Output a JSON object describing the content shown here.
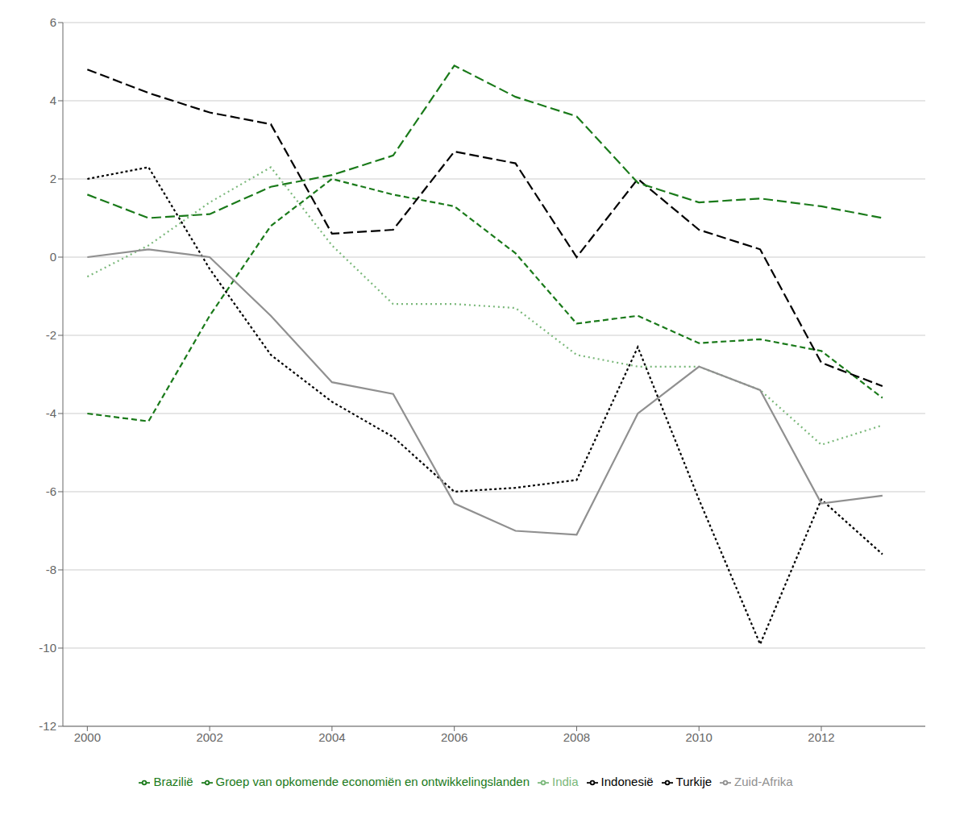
{
  "chart_data": {
    "type": "line",
    "x": [
      2000,
      2001,
      2002,
      2003,
      2004,
      2005,
      2006,
      2007,
      2008,
      2009,
      2010,
      2011,
      2012,
      2013
    ],
    "series": [
      {
        "name": "Brazilië",
        "color": "#1a7a1a",
        "line_style": "dashed",
        "values": [
          -4.0,
          -4.2,
          -1.5,
          0.8,
          2.0,
          1.6,
          1.3,
          0.1,
          -1.7,
          -1.5,
          -2.2,
          -2.1,
          -2.4,
          -3.6
        ]
      },
      {
        "name": "India",
        "color": "#7ab87a",
        "line_style": "dotted",
        "values": [
          -0.5,
          0.3,
          1.4,
          2.3,
          0.3,
          -1.2,
          -1.2,
          -1.3,
          -2.5,
          -2.8,
          -2.8,
          -3.4,
          -4.8,
          -4.3
        ]
      },
      {
        "name": "Indonesië",
        "color": "#000000",
        "line_style": "long dashed",
        "values": [
          4.8,
          4.2,
          3.7,
          3.4,
          0.6,
          0.7,
          2.7,
          2.4,
          0.0,
          2.0,
          0.7,
          0.2,
          -2.7,
          -3.3
        ]
      },
      {
        "name": "Turkije",
        "color": "#000000",
        "line_style": "short dashed",
        "values": [
          2.0,
          2.3,
          -0.3,
          -2.5,
          -3.7,
          -4.6,
          -6.0,
          -5.9,
          -5.7,
          -2.3,
          -6.2,
          -9.9,
          -6.2,
          -7.6
        ]
      },
      {
        "name": "Zuid-Afrika",
        "color": "#909090",
        "line_style": "solid",
        "values": [
          0.0,
          0.2,
          0.0,
          -1.5,
          -3.2,
          -3.5,
          -6.3,
          -7.0,
          -7.1,
          -4.0,
          -2.8,
          -3.4,
          -6.3,
          -6.1
        ]
      },
      {
        "name": "Groep van opkomende economiën en ontwikkelingslanden",
        "color": "#1a7a1a",
        "line_style": "long dashed",
        "values": [
          1.6,
          1.0,
          1.1,
          1.8,
          2.1,
          2.6,
          4.9,
          4.1,
          3.6,
          1.9,
          1.4,
          1.5,
          1.3,
          1.0
        ]
      }
    ],
    "xlim": [
      1999.6,
      2013.7
    ],
    "xticks": [
      2000,
      2002,
      2004,
      2006,
      2008,
      2010,
      2012
    ],
    "ylim": [
      -12,
      6
    ],
    "yticks": [
      -12,
      -10,
      -8,
      -6,
      -4,
      -2,
      0,
      2,
      4,
      6
    ],
    "grid": true,
    "legend": "bottom"
  }
}
